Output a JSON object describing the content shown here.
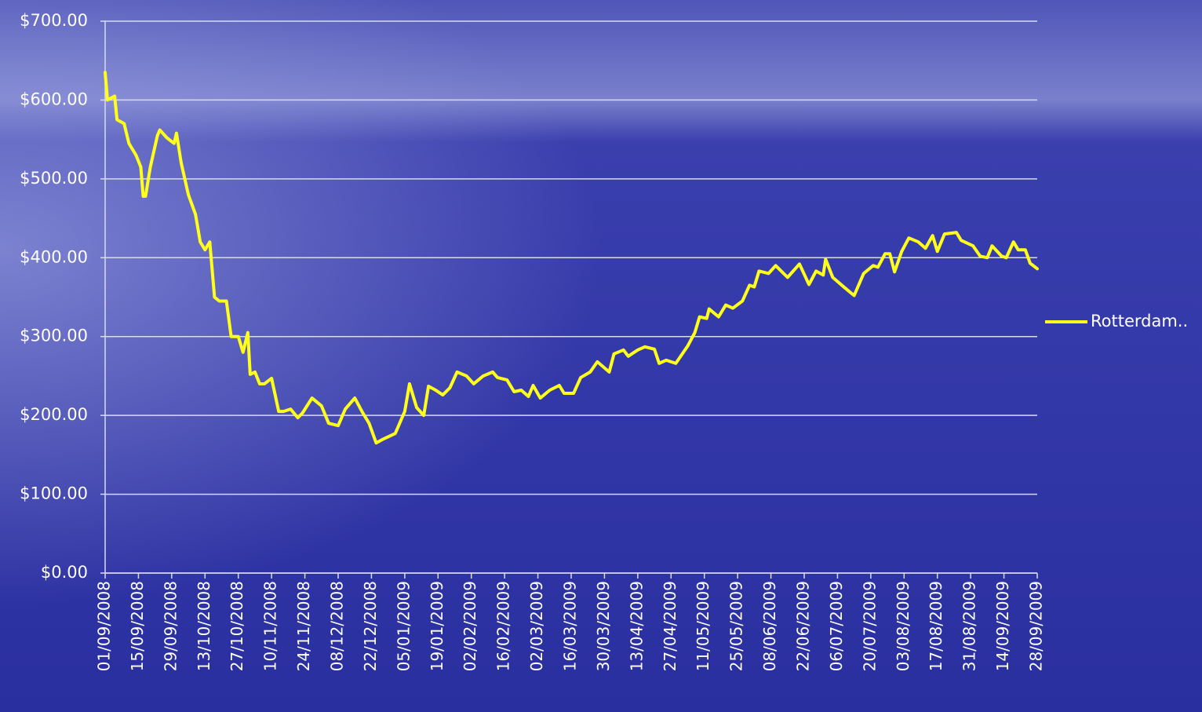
{
  "chart_data": {
    "type": "line",
    "xlim": [
      "01/09/2008",
      "28/09/2009"
    ],
    "xticks": [
      "01/09/2008",
      "15/09/2008",
      "29/09/2008",
      "13/10/2008",
      "27/10/2008",
      "10/11/2008",
      "24/11/2008",
      "08/12/2008",
      "22/12/2008",
      "05/01/2009",
      "19/01/2009",
      "02/02/2009",
      "16/02/2009",
      "02/03/2009",
      "16/03/2009",
      "30/03/2009",
      "13/04/2009",
      "27/04/2009",
      "11/05/2009",
      "25/05/2009",
      "08/06/2009",
      "22/06/2009",
      "06/07/2009",
      "20/07/2009",
      "03/08/2009",
      "17/08/2009",
      "31/08/2009",
      "14/09/2009",
      "28/09/2009"
    ],
    "ylim": [
      0,
      700
    ],
    "yticks": [
      {
        "value": 0,
        "label": "$0.00"
      },
      {
        "value": 100,
        "label": "$100.00"
      },
      {
        "value": 200,
        "label": "$200.00"
      },
      {
        "value": 300,
        "label": "$300.00"
      },
      {
        "value": 400,
        "label": "$400.00"
      },
      {
        "value": 500,
        "label": "$500.00"
      },
      {
        "value": 600,
        "label": "$600.00"
      },
      {
        "value": 700,
        "label": "$700.00"
      }
    ],
    "grid": true,
    "legend": "right",
    "x": [
      "01/09/2008",
      "02/09/2008",
      "05/09/2008",
      "06/09/2008",
      "09/09/2008",
      "11/09/2008",
      "14/09/2008",
      "16/09/2008",
      "17/09/2008",
      "18/09/2008",
      "20/09/2008",
      "23/09/2008",
      "24/09/2008",
      "27/09/2008",
      "30/09/2008",
      "01/10/2008",
      "03/10/2008",
      "06/10/2008",
      "09/10/2008",
      "11/10/2008",
      "13/10/2008",
      "15/10/2008",
      "17/10/2008",
      "19/10/2008",
      "22/10/2008",
      "24/10/2008",
      "27/10/2008",
      "29/10/2008",
      "31/10/2008",
      "01/11/2008",
      "03/11/2008",
      "05/11/2008",
      "07/11/2008",
      "10/11/2008",
      "13/11/2008",
      "15/11/2008",
      "18/11/2008",
      "21/11/2008",
      "23/11/2008",
      "27/11/2008",
      "01/12/2008",
      "04/12/2008",
      "08/12/2008",
      "11/12/2008",
      "15/12/2008",
      "18/12/2008",
      "21/12/2008",
      "24/12/2008",
      "27/12/2008",
      "01/01/2009",
      "05/01/2009",
      "07/01/2009",
      "10/01/2009",
      "13/01/2009",
      "15/01/2009",
      "18/01/2009",
      "21/01/2009",
      "24/01/2009",
      "27/01/2009",
      "31/01/2009",
      "03/02/2009",
      "07/02/2009",
      "11/02/2009",
      "13/02/2009",
      "17/02/2009",
      "20/02/2009",
      "23/02/2009",
      "26/02/2009",
      "28/02/2009",
      "03/03/2009",
      "07/03/2009",
      "11/03/2009",
      "13/03/2009",
      "17/03/2009",
      "20/03/2009",
      "24/03/2009",
      "27/03/2009",
      "01/04/2009",
      "03/04/2009",
      "07/04/2009",
      "09/04/2009",
      "13/04/2009",
      "16/04/2009",
      "20/04/2009",
      "22/04/2009",
      "25/04/2009",
      "29/04/2009",
      "04/05/2009",
      "07/05/2009",
      "09/05/2009",
      "12/05/2009",
      "13/05/2009",
      "17/05/2009",
      "20/05/2009",
      "23/05/2009",
      "27/05/2009",
      "30/05/2009",
      "01/06/2009",
      "03/06/2009",
      "07/06/2009",
      "10/06/2009",
      "15/06/2009",
      "20/06/2009",
      "24/06/2009",
      "27/06/2009",
      "30/06/2009",
      "01/07/2009",
      "04/07/2009",
      "09/07/2009",
      "13/07/2009",
      "17/07/2009",
      "21/07/2009",
      "23/07/2009",
      "26/07/2009",
      "28/07/2009",
      "30/07/2009",
      "02/08/2009",
      "05/08/2009",
      "09/08/2009",
      "12/08/2009",
      "15/08/2009",
      "17/08/2009",
      "20/08/2009",
      "25/08/2009",
      "27/08/2009",
      "01/09/2009",
      "04/09/2009",
      "07/09/2009",
      "09/09/2009",
      "13/09/2009",
      "15/09/2009",
      "18/09/2009",
      "20/09/2009",
      "23/09/2009",
      "25/09/2009",
      "28/09/2009"
    ],
    "series": [
      {
        "name": "Rotterdam..",
        "color": "#ffff1a",
        "values": [
          635,
          600,
          605,
          575,
          570,
          545,
          530,
          515,
          478,
          478,
          515,
          555,
          562,
          552,
          545,
          558,
          520,
          480,
          455,
          420,
          410,
          420,
          350,
          345,
          345,
          300,
          300,
          280,
          305,
          252,
          255,
          240,
          240,
          247,
          205,
          205,
          208,
          197,
          203,
          222,
          212,
          190,
          187,
          208,
          222,
          205,
          190,
          165,
          170,
          177,
          205,
          240,
          210,
          200,
          237,
          232,
          226,
          235,
          255,
          250,
          240,
          250,
          255,
          248,
          245,
          230,
          232,
          224,
          238,
          222,
          232,
          238,
          228,
          228,
          248,
          255,
          268,
          255,
          278,
          283,
          275,
          283,
          287,
          284,
          266,
          270,
          266,
          288,
          305,
          325,
          323,
          335,
          325,
          340,
          336,
          345,
          365,
          363,
          383,
          380,
          390,
          375,
          392,
          366,
          383,
          378,
          398,
          375,
          362,
          352,
          380,
          390,
          388,
          405,
          405,
          382,
          408,
          425,
          420,
          412,
          428,
          408,
          430,
          432,
          422,
          415,
          402,
          400,
          415,
          402,
          400,
          420,
          410,
          410,
          393,
          386
        ]
      }
    ]
  }
}
